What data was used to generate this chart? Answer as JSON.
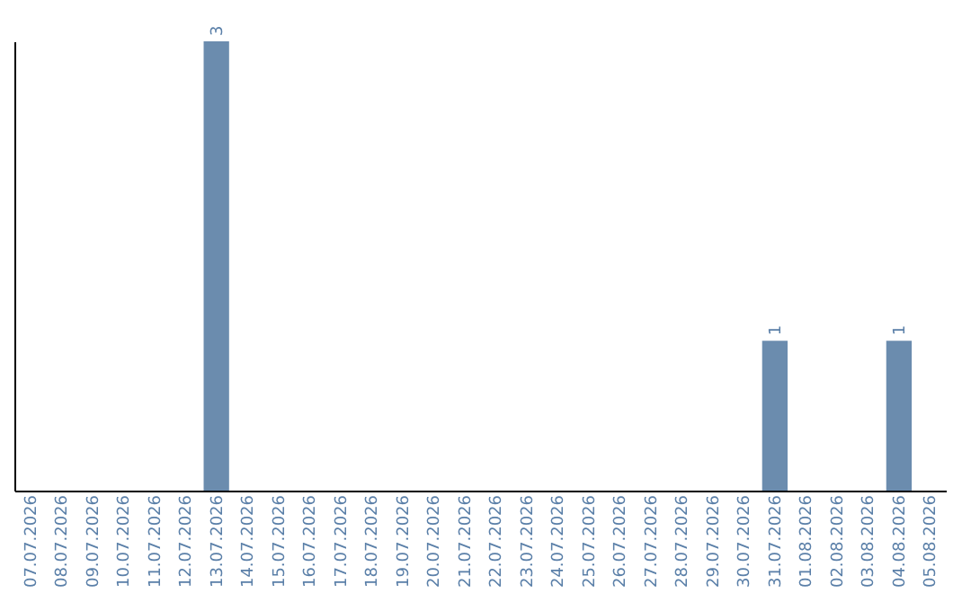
{
  "chart_data": {
    "type": "bar",
    "categories": [
      "07.07.2026",
      "08.07.2026",
      "09.07.2026",
      "10.07.2026",
      "11.07.2026",
      "12.07.2026",
      "13.07.2026",
      "14.07.2026",
      "15.07.2026",
      "16.07.2026",
      "17.07.2026",
      "18.07.2026",
      "19.07.2026",
      "20.07.2026",
      "21.07.2026",
      "22.07.2026",
      "23.07.2026",
      "24.07.2026",
      "25.07.2026",
      "26.07.2026",
      "27.07.2026",
      "28.07.2026",
      "29.07.2026",
      "30.07.2026",
      "31.07.2026",
      "01.08.2026",
      "02.08.2026",
      "03.08.2026",
      "04.08.2026",
      "05.08.2026"
    ],
    "values": [
      0,
      0,
      0,
      0,
      0,
      0,
      3,
      0,
      0,
      0,
      0,
      0,
      0,
      0,
      0,
      0,
      0,
      0,
      0,
      0,
      0,
      0,
      0,
      0,
      1,
      0,
      0,
      0,
      1,
      0
    ],
    "value_labels": [
      null,
      null,
      null,
      null,
      null,
      null,
      "3",
      null,
      null,
      null,
      null,
      null,
      null,
      null,
      null,
      null,
      null,
      null,
      null,
      null,
      null,
      null,
      null,
      null,
      "1",
      null,
      null,
      null,
      "1",
      null
    ],
    "color": "#6b8cae",
    "ylim": [
      0,
      3
    ],
    "grid": false
  }
}
